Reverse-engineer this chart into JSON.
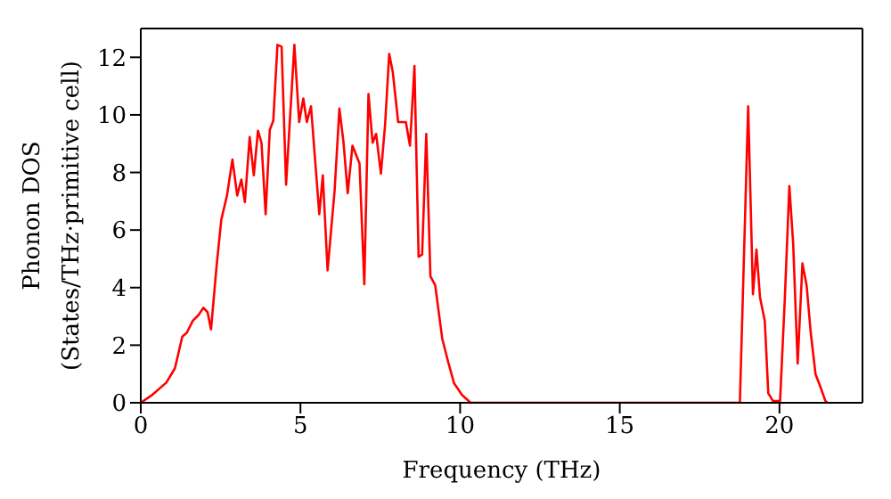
{
  "chart_data": {
    "type": "line",
    "xlabel": "Frequency (THz)",
    "ylabel": "Phonon DOS\n(States/THz·primitive cell)",
    "xlim": [
      0,
      22.6
    ],
    "ylim": [
      0,
      13
    ],
    "xticks": [
      0,
      5,
      10,
      15,
      20
    ],
    "yticks": [
      0,
      2,
      4,
      6,
      8,
      10,
      12
    ],
    "marker": "none",
    "line_style": "solid",
    "series": [
      {
        "color": "#ff0000",
        "x": [
          0,
          0.33,
          0.8,
          1.07,
          1.3,
          1.44,
          1.63,
          1.81,
          1.96,
          2.09,
          2.2,
          2.37,
          2.52,
          2.7,
          2.87,
          3.02,
          3.15,
          3.26,
          3.41,
          3.54,
          3.67,
          3.78,
          3.91,
          4.04,
          4.15,
          4.28,
          4.41,
          4.55,
          4.81,
          4.96,
          5.09,
          5.2,
          5.33,
          5.59,
          5.7,
          5.85,
          6.07,
          6.22,
          6.35,
          6.48,
          6.63,
          6.85,
          7.0,
          7.13,
          7.26,
          7.37,
          7.52,
          7.65,
          7.78,
          7.89,
          8.06,
          8.3,
          8.43,
          8.57,
          8.7,
          8.81,
          8.94,
          9.07,
          9.22,
          9.44,
          9.63,
          9.81,
          10.06,
          10.33,
          18.76,
          19.02,
          19.17,
          19.28,
          19.39,
          19.54,
          19.65,
          19.8,
          20.02,
          20.17,
          20.31,
          20.43,
          20.57,
          20.72,
          20.85,
          20.98,
          21.13,
          21.26,
          21.44,
          21.5
        ],
        "values": [
          0,
          0.25,
          0.7,
          1.2,
          2.3,
          2.43,
          2.85,
          3.05,
          3.3,
          3.15,
          2.55,
          4.7,
          6.35,
          7.2,
          8.45,
          7.2,
          7.75,
          6.97,
          9.23,
          7.9,
          9.45,
          9.03,
          6.55,
          9.48,
          9.8,
          12.43,
          12.37,
          7.58,
          12.43,
          9.75,
          10.57,
          9.75,
          10.3,
          6.55,
          7.9,
          4.6,
          7.38,
          10.22,
          9.03,
          7.28,
          8.93,
          8.31,
          4.12,
          10.72,
          9.03,
          9.34,
          7.96,
          9.65,
          12.12,
          11.5,
          9.75,
          9.75,
          8.93,
          11.7,
          5.07,
          5.15,
          9.34,
          4.39,
          4.08,
          2.23,
          1.4,
          0.68,
          0.27,
          0,
          0,
          10.3,
          3.77,
          5.32,
          3.67,
          2.85,
          0.33,
          0.06,
          0.06,
          3.67,
          7.53,
          5.52,
          1.36,
          4.84,
          4.08,
          2.43,
          0.99,
          0.62,
          0.06,
          0
        ]
      }
    ]
  }
}
